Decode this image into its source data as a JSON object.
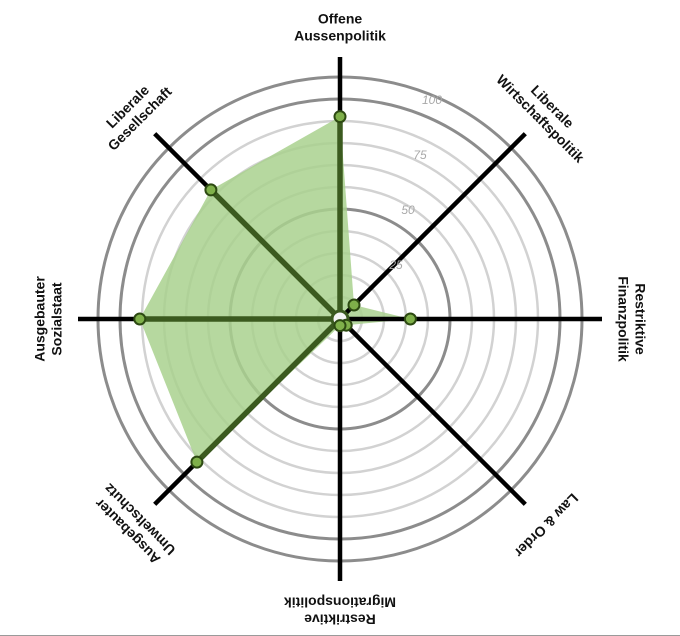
{
  "chart_data": {
    "type": "radar",
    "title": "",
    "axes": [
      {
        "label_lines": [
          "Offene",
          "Aussenpolitik"
        ],
        "value": 92
      },
      {
        "label_lines": [
          "Liberale",
          "Wirtschaftspolitik"
        ],
        "value": 9
      },
      {
        "label_lines": [
          "Restriktive",
          "Finanzpolitik"
        ],
        "value": 32
      },
      {
        "label_lines": [
          "Law & Order"
        ],
        "value": 4
      },
      {
        "label_lines": [
          "Restriktive",
          "Migrationspolitik"
        ],
        "value": 3
      },
      {
        "label_lines": [
          "Ausgebauter",
          "Umweltschutz"
        ],
        "value": 92
      },
      {
        "label_lines": [
          "Ausgebauter",
          "Sozialstaat"
        ],
        "value": 91
      },
      {
        "label_lines": [
          "Liberale",
          "Gesellschaft"
        ],
        "value": 83
      }
    ],
    "radial_range": [
      0,
      100
    ],
    "rings": [
      10,
      20,
      30,
      40,
      50,
      60,
      70,
      80,
      90,
      100,
      110
    ],
    "tick_labels": [
      {
        "value": 25,
        "text": "25"
      },
      {
        "value": 50,
        "text": "50"
      },
      {
        "value": 75,
        "text": "75"
      },
      {
        "value": 100,
        "text": "100"
      }
    ],
    "colors": {
      "fill": "#a9d18e",
      "fill_opacity": 0.85,
      "accent_axis": "#3b5a1f",
      "plain_axis": "#000000",
      "ring": "#d2d2d2",
      "ring_major": "#8c8c8c",
      "marker_fill": "#7fb04a",
      "marker_stroke": "#2d4a12"
    }
  }
}
